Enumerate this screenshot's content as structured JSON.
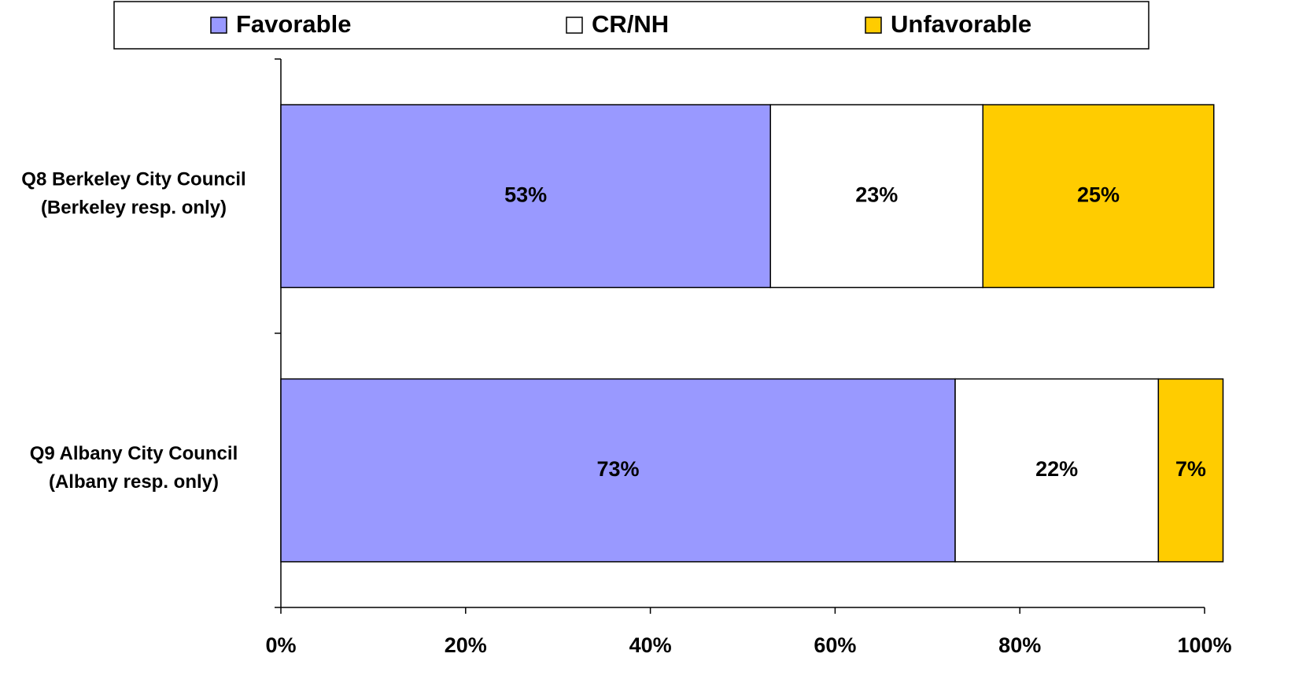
{
  "chart_data": {
    "type": "bar",
    "orientation": "horizontal",
    "stacked": true,
    "categories": [
      [
        "Q8 Berkeley City Council",
        "(Berkeley resp. only)"
      ],
      [
        "Q9 Albany City Council",
        "(Albany resp. only)"
      ]
    ],
    "series": [
      {
        "name": "Favorable",
        "color": "#9999ff",
        "values": [
          53,
          73
        ],
        "value_labels": [
          "53%",
          "73%"
        ]
      },
      {
        "name": "CR/NH",
        "color": "#ffffff",
        "values": [
          23,
          22
        ],
        "value_labels": [
          "23%",
          "22%"
        ]
      },
      {
        "name": "Unfavorable",
        "color": "#ffcc00",
        "values": [
          25,
          7
        ],
        "value_labels": [
          "25%",
          "7%"
        ]
      }
    ],
    "xlim": [
      0,
      100
    ],
    "xticks": [
      {
        "value": 0,
        "label": "0%"
      },
      {
        "value": 20,
        "label": "20%"
      },
      {
        "value": 40,
        "label": "40%"
      },
      {
        "value": 60,
        "label": "60%"
      },
      {
        "value": 80,
        "label": "80%"
      },
      {
        "value": 100,
        "label": "100%"
      }
    ],
    "legend": "top",
    "grid": false
  }
}
